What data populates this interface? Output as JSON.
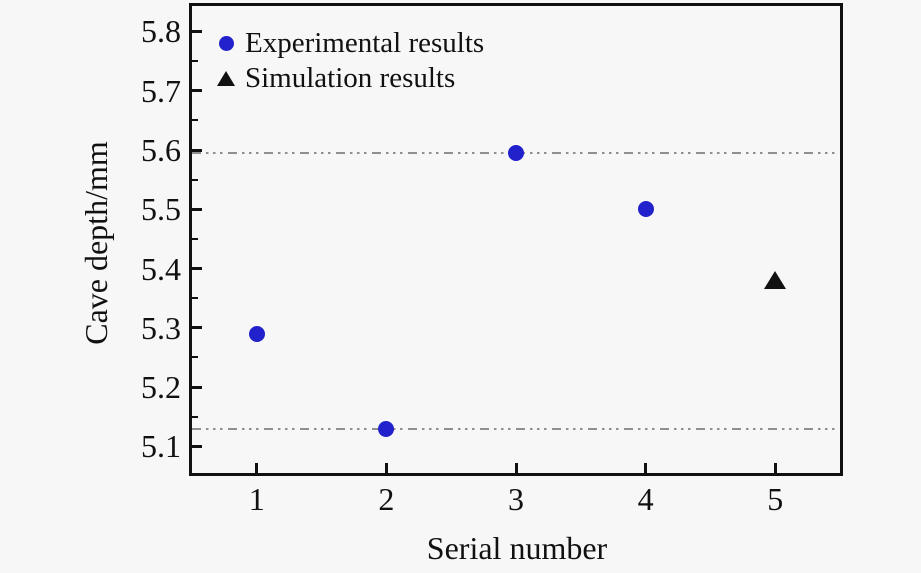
{
  "figure": {
    "background": "#f7f7f7",
    "axis_color": "#111111"
  },
  "chart_data": {
    "type": "scatter",
    "title": "",
    "xlabel": "Serial number",
    "ylabel": "Cave depth/mm",
    "xlim": [
      0.5,
      5.5
    ],
    "ylim": [
      5.055,
      5.843
    ],
    "x_ticks": [
      1,
      2,
      3,
      4,
      5
    ],
    "x_tick_labels": [
      "1",
      "2",
      "3",
      "4",
      "5"
    ],
    "y_ticks": [
      5.8,
      5.7,
      5.6,
      5.5,
      5.4,
      5.3,
      5.2,
      5.1
    ],
    "y_tick_labels": [
      "5.8",
      "5.7",
      "5.6",
      "5.5",
      "5.4",
      "5.3",
      "5.2",
      "5.1"
    ],
    "y_minor_step": 0.05,
    "grid": false,
    "legend_position": "upper-left-inside",
    "series": [
      {
        "name": "Experimental results",
        "marker": "circle",
        "color": "#2222cc",
        "x": [
          1,
          2,
          3,
          4
        ],
        "y": [
          5.29,
          5.13,
          5.595,
          5.5
        ]
      },
      {
        "name": "Simulation results",
        "marker": "triangle",
        "color": "#111111",
        "x": [
          5
        ],
        "y": [
          5.38
        ]
      }
    ],
    "reference_lines": [
      {
        "y": 5.595,
        "style": "dash-dot-dot",
        "color": "#8f8f8f"
      },
      {
        "y": 5.13,
        "style": "dash-dot-dot",
        "color": "#8f8f8f"
      }
    ]
  },
  "legend": {
    "items": [
      {
        "label": "Experimental results",
        "marker": "circle",
        "color": "#2222cc"
      },
      {
        "label": "Simulation results",
        "marker": "triangle",
        "color": "#111111"
      }
    ]
  }
}
